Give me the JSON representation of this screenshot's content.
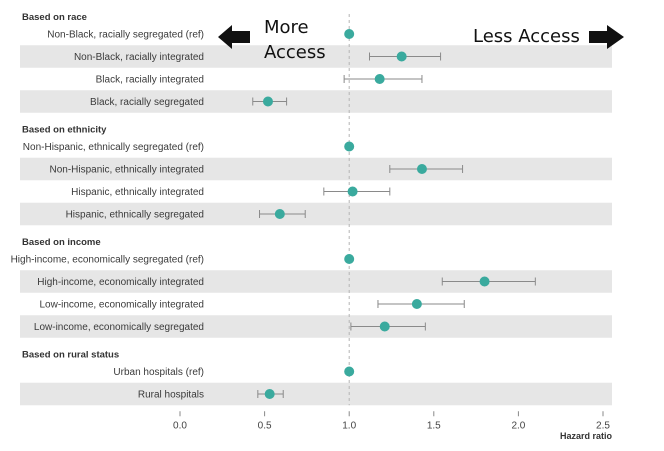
{
  "chart_data": {
    "type": "forest",
    "xlabel": "Hazard ratio",
    "xlim": [
      0.0,
      2.5
    ],
    "xticks": [
      0.0,
      0.5,
      1.0,
      1.5,
      2.0,
      2.5
    ],
    "xtick_labels": [
      "0.0",
      "0.5",
      "1.0",
      "1.5",
      "2.0",
      "2.5"
    ],
    "reference_line": 1.0,
    "point_color": "#3aaa9e",
    "annotations": {
      "left": "More Access",
      "right": "Less Access"
    },
    "groups": [
      {
        "title": "Based on race",
        "rows": [
          {
            "label": "Non-Black, racially segregated (ref)",
            "hr": 1.0,
            "lo": null,
            "hi": null
          },
          {
            "label": "Non-Black, racially integrated",
            "hr": 1.31,
            "lo": 1.12,
            "hi": 1.54
          },
          {
            "label": "Black, racially integrated",
            "hr": 1.18,
            "lo": 0.97,
            "hi": 1.43
          },
          {
            "label": "Black, racially segregated",
            "hr": 0.52,
            "lo": 0.43,
            "hi": 0.63
          }
        ]
      },
      {
        "title": "Based on ethnicity",
        "rows": [
          {
            "label": "Non-Hispanic, ethnically segregated (ref)",
            "hr": 1.0,
            "lo": null,
            "hi": null
          },
          {
            "label": "Non-Hispanic, ethnically integrated",
            "hr": 1.43,
            "lo": 1.24,
            "hi": 1.67
          },
          {
            "label": "Hispanic, ethnically integrated",
            "hr": 1.02,
            "lo": 0.85,
            "hi": 1.24
          },
          {
            "label": "Hispanic, ethnically segregated",
            "hr": 0.59,
            "lo": 0.47,
            "hi": 0.74
          }
        ]
      },
      {
        "title": "Based on income",
        "rows": [
          {
            "label": "High-income, economically segregated (ref)",
            "hr": 1.0,
            "lo": null,
            "hi": null
          },
          {
            "label": "High-income, economically integrated",
            "hr": 1.8,
            "lo": 1.55,
            "hi": 2.1
          },
          {
            "label": "Low-income, economically integrated",
            "hr": 1.4,
            "lo": 1.17,
            "hi": 1.68
          },
          {
            "label": "Low-income, economically segregated",
            "hr": 1.21,
            "lo": 1.01,
            "hi": 1.45
          }
        ]
      },
      {
        "title": "Based on rural status",
        "rows": [
          {
            "label": "Urban hospitals (ref)",
            "hr": 1.0,
            "lo": null,
            "hi": null
          },
          {
            "label": "Rural hospitals",
            "hr": 0.53,
            "lo": 0.46,
            "hi": 0.61
          }
        ]
      }
    ]
  }
}
